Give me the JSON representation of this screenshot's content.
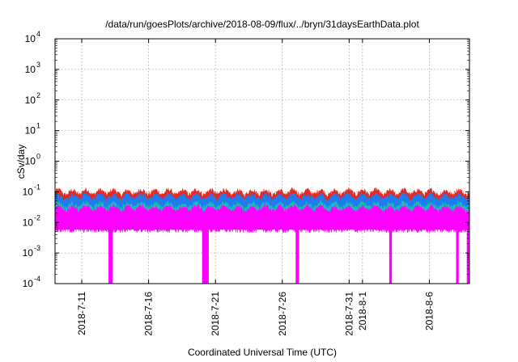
{
  "chart_data": {
    "type": "area",
    "title": "/data/run/goesPlots/archive/2018-08-09/flux/../bryn/31daysEarthData.plot",
    "xlabel": "Coordinated Universal Time (UTC)",
    "ylabel": "cSv/day",
    "yscale": "log",
    "ylim": [
      0.0001,
      10000
    ],
    "xlim": [
      "2018-07-09",
      "2018-08-09"
    ],
    "grid": true,
    "y_ticks": [
      {
        "mantissa": "10",
        "exp": "-4",
        "value": 0.0001
      },
      {
        "mantissa": "10",
        "exp": "-3",
        "value": 0.001
      },
      {
        "mantissa": "10",
        "exp": "-2",
        "value": 0.01
      },
      {
        "mantissa": "10",
        "exp": "-1",
        "value": 0.1
      },
      {
        "mantissa": "10",
        "exp": "0",
        "value": 1
      },
      {
        "mantissa": "10",
        "exp": "1",
        "value": 10
      },
      {
        "mantissa": "10",
        "exp": "2",
        "value": 100
      },
      {
        "mantissa": "10",
        "exp": "3",
        "value": 1000
      },
      {
        "mantissa": "10",
        "exp": "4",
        "value": 10000
      }
    ],
    "x_ticks": [
      "2018-7-11",
      "2018-7-16",
      "2018-7-21",
      "2018-7-26",
      "2018-7-31",
      "2018-8-1",
      "2018-8-6"
    ],
    "series": [
      {
        "color": "#e8281e",
        "level": "upper",
        "values": [
          0.12,
          0.11,
          0.12,
          0.115,
          0.12,
          0.11,
          0.12,
          0.115,
          0.12,
          0.11,
          0.12,
          0.115,
          0.12,
          0.11,
          0.115,
          0.12,
          0.11,
          0.12,
          0.115,
          0.12,
          0.11,
          0.12,
          0.115,
          0.12,
          0.11,
          0.12,
          0.115,
          0.12,
          0.11,
          0.12,
          0.11
        ]
      },
      {
        "color": "#1e7cf0",
        "level": "mid-upper",
        "values": [
          0.085,
          0.08,
          0.085,
          0.082,
          0.085,
          0.08,
          0.085,
          0.082,
          0.085,
          0.08,
          0.085,
          0.082,
          0.085,
          0.08,
          0.082,
          0.085,
          0.08,
          0.085,
          0.082,
          0.085,
          0.08,
          0.085,
          0.082,
          0.085,
          0.08,
          0.085,
          0.082,
          0.085,
          0.08,
          0.085,
          0.08
        ]
      },
      {
        "color": "#16c0b4",
        "level": "mid",
        "values": [
          0.045,
          0.042,
          0.045,
          0.043,
          0.045,
          0.042,
          0.045,
          0.043,
          0.045,
          0.042,
          0.045,
          0.043,
          0.045,
          0.042,
          0.043,
          0.045,
          0.042,
          0.045,
          0.043,
          0.045,
          0.042,
          0.045,
          0.043,
          0.045,
          0.042,
          0.045,
          0.043,
          0.045,
          0.042,
          0.045,
          0.042
        ]
      },
      {
        "color": "#ff00ff",
        "level": "lower",
        "values": [
          0.035,
          0.032,
          0.035,
          0.033,
          0.035,
          0.032,
          0.035,
          0.033,
          0.035,
          0.032,
          0.035,
          0.033,
          0.035,
          0.032,
          0.033,
          0.035,
          0.032,
          0.035,
          0.033,
          0.035,
          0.032,
          0.035,
          0.033,
          0.035,
          0.032,
          0.035,
          0.033,
          0.035,
          0.032,
          0.035,
          0.032
        ]
      }
    ],
    "baseline_min": 0.006,
    "dropouts": [
      {
        "date": "2018-07-13",
        "width_days": 0.3
      },
      {
        "date": "2018-07-20",
        "width_days": 0.5
      },
      {
        "date": "2018-07-27",
        "width_days": 0.25
      },
      {
        "date": "2018-08-03",
        "width_days": 0.2
      },
      {
        "date": "2018-08-08",
        "width_days": 0.2
      },
      {
        "date": "2018-08-09",
        "width_days": 0.2
      }
    ],
    "colors": {
      "background": "#ffffff",
      "grid": "#888888",
      "axis": "#000000"
    }
  }
}
